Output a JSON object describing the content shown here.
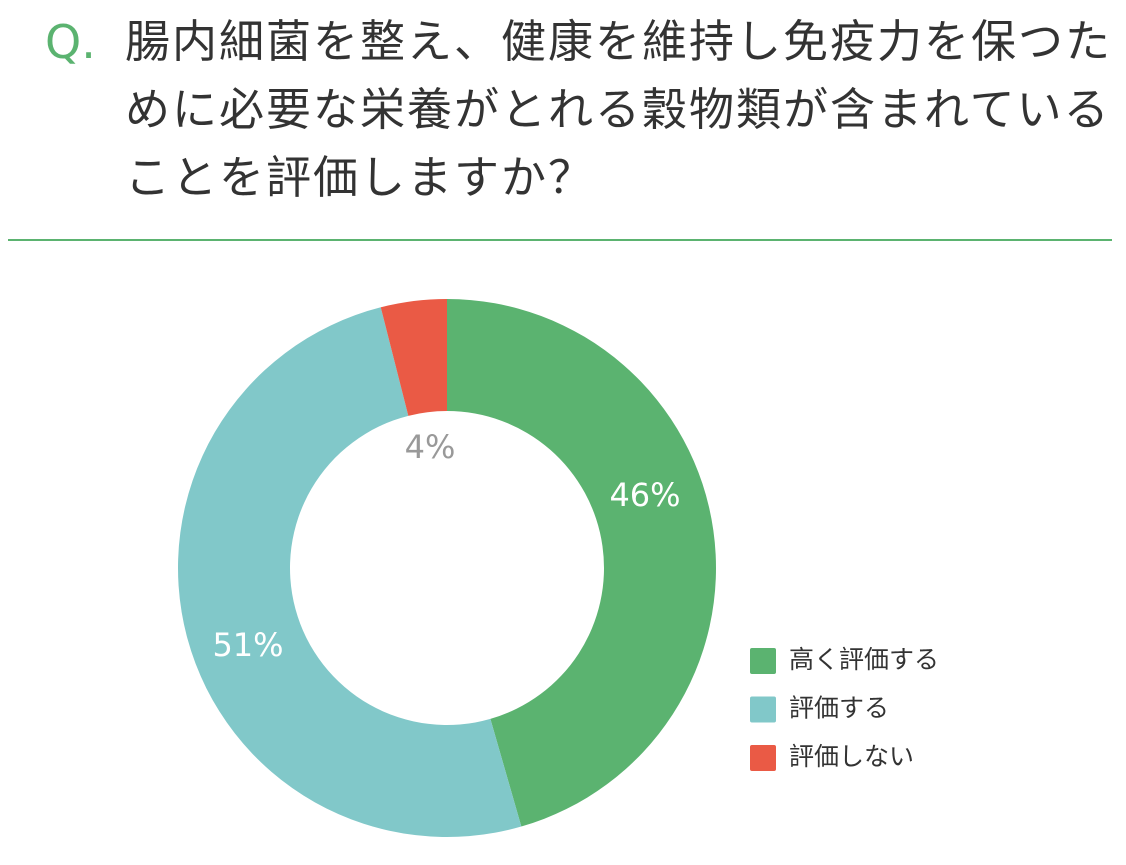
{
  "chart_data": {
    "type": "donut",
    "title_prefix": "Q.",
    "title": "腸内細菌を整え、健康を維持し免疫力を保つために必要な栄養がとれる穀物類が含まれていることを評価しますか？",
    "categories": [
      "高く評価する",
      "評価する",
      "評価しない"
    ],
    "values": [
      46,
      51,
      4
    ],
    "value_labels": [
      "46%",
      "51%",
      "4%"
    ],
    "colors": [
      "#5bb370",
      "#81c8c9",
      "#ea5a45"
    ]
  }
}
